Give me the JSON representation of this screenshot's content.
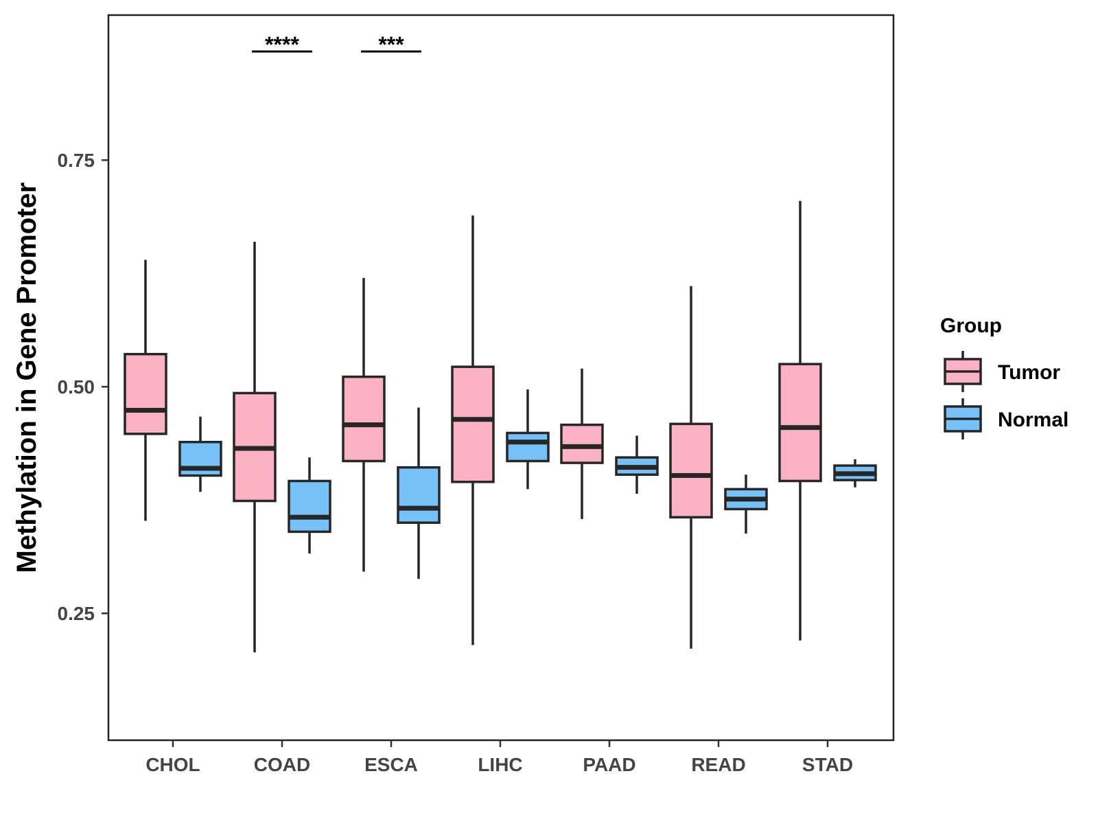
{
  "chart_data": {
    "type": "box",
    "title": "",
    "xlabel": "",
    "ylabel": "Methylation in Gene Promoter",
    "ylim": [
      0.11,
      0.91
    ],
    "yticks": [
      0.25,
      0.5,
      0.75
    ],
    "ytick_labels": [
      "0.25",
      "0.50",
      "0.75"
    ],
    "categories": [
      "CHOL",
      "COAD",
      "ESCA",
      "LIHC",
      "PAAD",
      "READ",
      "STAD"
    ],
    "legend": {
      "title": "Group",
      "position": "right",
      "entries": [
        "Tumor",
        "Normal"
      ]
    },
    "colors": {
      "Tumor": "#FBB1C4",
      "Normal": "#76C1F7",
      "stroke": "#262626"
    },
    "series": [
      {
        "name": "Tumor",
        "boxes": [
          {
            "category": "CHOL",
            "min": 0.352,
            "q1": 0.448,
            "median": 0.474,
            "q3": 0.536,
            "max": 0.64
          },
          {
            "category": "COAD",
            "min": 0.207,
            "q1": 0.374,
            "median": 0.432,
            "q3": 0.493,
            "max": 0.66
          },
          {
            "category": "ESCA",
            "min": 0.296,
            "q1": 0.418,
            "median": 0.458,
            "q3": 0.511,
            "max": 0.62
          },
          {
            "category": "LIHC",
            "min": 0.215,
            "q1": 0.395,
            "median": 0.464,
            "q3": 0.522,
            "max": 0.689
          },
          {
            "category": "PAAD",
            "min": 0.354,
            "q1": 0.416,
            "median": 0.434,
            "q3": 0.458,
            "max": 0.52
          },
          {
            "category": "READ",
            "min": 0.211,
            "q1": 0.356,
            "median": 0.402,
            "q3": 0.459,
            "max": 0.611
          },
          {
            "category": "STAD",
            "min": 0.22,
            "q1": 0.396,
            "median": 0.455,
            "q3": 0.525,
            "max": 0.705
          }
        ]
      },
      {
        "name": "Normal",
        "boxes": [
          {
            "category": "CHOL",
            "min": 0.384,
            "q1": 0.402,
            "median": 0.41,
            "q3": 0.439,
            "max": 0.467
          },
          {
            "category": "COAD",
            "min": 0.316,
            "q1": 0.34,
            "median": 0.356,
            "q3": 0.396,
            "max": 0.422
          },
          {
            "category": "ESCA",
            "min": 0.288,
            "q1": 0.35,
            "median": 0.366,
            "q3": 0.411,
            "max": 0.477
          },
          {
            "category": "LIHC",
            "min": 0.387,
            "q1": 0.418,
            "median": 0.439,
            "q3": 0.449,
            "max": 0.497
          },
          {
            "category": "PAAD",
            "min": 0.382,
            "q1": 0.403,
            "median": 0.411,
            "q3": 0.422,
            "max": 0.446
          },
          {
            "category": "READ",
            "min": 0.338,
            "q1": 0.365,
            "median": 0.376,
            "q3": 0.387,
            "max": 0.403
          },
          {
            "category": "STAD",
            "min": 0.389,
            "q1": 0.397,
            "median": 0.404,
            "q3": 0.413,
            "max": 0.42
          }
        ]
      }
    ],
    "annotations": [
      {
        "category": "COAD",
        "label": "****"
      },
      {
        "category": "ESCA",
        "label": "***"
      }
    ]
  }
}
